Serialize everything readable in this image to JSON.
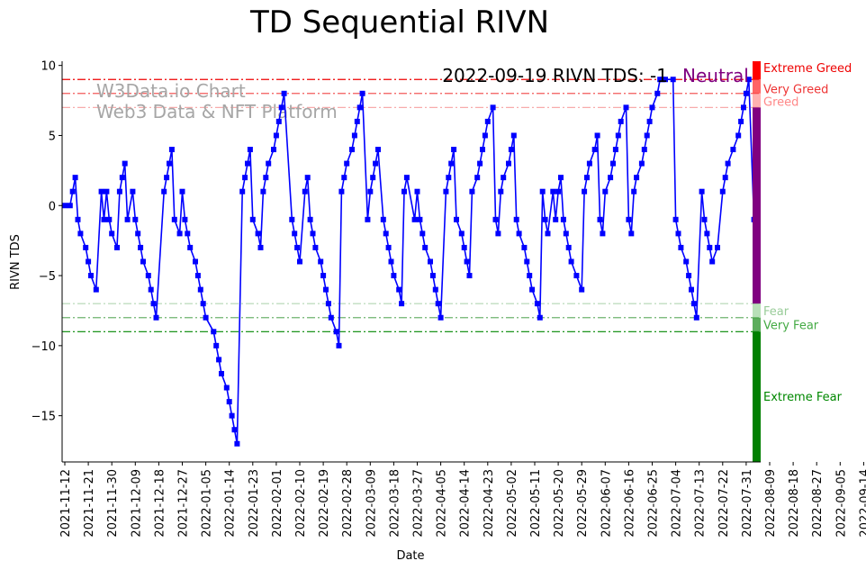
{
  "chart_data": {
    "type": "line",
    "title": "TD Sequential RIVN",
    "xlabel": "Date",
    "ylabel": "RIVN TDS",
    "ylim": [
      -18.3,
      10.3
    ],
    "yticks": [
      10,
      5,
      0,
      -5,
      -10,
      -15
    ],
    "x_tick_labels": [
      "2021-11-12",
      "2021-11-21",
      "2021-11-30",
      "2021-12-09",
      "2021-12-18",
      "2021-12-27",
      "2022-01-05",
      "2022-01-14",
      "2022-01-23",
      "2022-02-01",
      "2022-02-10",
      "2022-02-19",
      "2022-02-28",
      "2022-03-09",
      "2022-03-18",
      "2022-03-27",
      "2022-04-05",
      "2022-04-14",
      "2022-04-23",
      "2022-05-02",
      "2022-05-11",
      "2022-05-20",
      "2022-05-29",
      "2022-06-07",
      "2022-06-16",
      "2022-06-25",
      "2022-07-04",
      "2022-07-13",
      "2022-07-22",
      "2022-07-31",
      "2022-08-09",
      "2022-08-18",
      "2022-08-27",
      "2022-09-05",
      "2022-09-14"
    ],
    "annotation": "2022-09-19 RIVN TDS: -1",
    "annotation_status": "Neutral",
    "watermark_line1": "W3Data.io Chart",
    "watermark_line2": "Web3 Data & NFT Platform",
    "series": [
      {
        "name": "RIVN TDS",
        "color": "#0000ff",
        "points": [
          [
            0,
            0
          ],
          [
            2,
            0
          ],
          [
            3,
            1
          ],
          [
            4,
            2
          ],
          [
            5,
            -1
          ],
          [
            6,
            -2
          ],
          [
            8,
            -3
          ],
          [
            9,
            -4
          ],
          [
            10,
            -5
          ],
          [
            12,
            -6
          ],
          [
            14,
            1
          ],
          [
            15,
            -1
          ],
          [
            16,
            1
          ],
          [
            17,
            -1
          ],
          [
            18,
            -2
          ],
          [
            20,
            -3
          ],
          [
            21,
            1
          ],
          [
            22,
            2
          ],
          [
            23,
            3
          ],
          [
            24,
            -1
          ],
          [
            26,
            1
          ],
          [
            27,
            -1
          ],
          [
            28,
            -2
          ],
          [
            29,
            -3
          ],
          [
            30,
            -4
          ],
          [
            32,
            -5
          ],
          [
            33,
            -6
          ],
          [
            34,
            -7
          ],
          [
            35,
            -8
          ],
          [
            38,
            1
          ],
          [
            39,
            2
          ],
          [
            40,
            3
          ],
          [
            41,
            4
          ],
          [
            42,
            -1
          ],
          [
            44,
            -2
          ],
          [
            45,
            1
          ],
          [
            46,
            -1
          ],
          [
            47,
            -2
          ],
          [
            48,
            -3
          ],
          [
            50,
            -4
          ],
          [
            51,
            -5
          ],
          [
            52,
            -6
          ],
          [
            53,
            -7
          ],
          [
            54,
            -8
          ],
          [
            57,
            -9
          ],
          [
            58,
            -10
          ],
          [
            59,
            -11
          ],
          [
            60,
            -12
          ],
          [
            62,
            -13
          ],
          [
            63,
            -14
          ],
          [
            64,
            -15
          ],
          [
            65,
            -16
          ],
          [
            66,
            -17
          ],
          [
            68,
            1
          ],
          [
            69,
            2
          ],
          [
            70,
            3
          ],
          [
            71,
            4
          ],
          [
            72,
            -1
          ],
          [
            74,
            -2
          ],
          [
            75,
            -3
          ],
          [
            76,
            1
          ],
          [
            77,
            2
          ],
          [
            78,
            3
          ],
          [
            80,
            4
          ],
          [
            81,
            5
          ],
          [
            82,
            6
          ],
          [
            83,
            7
          ],
          [
            84,
            8
          ],
          [
            87,
            -1
          ],
          [
            88,
            -2
          ],
          [
            89,
            -3
          ],
          [
            90,
            -4
          ],
          [
            92,
            1
          ],
          [
            93,
            2
          ],
          [
            94,
            -1
          ],
          [
            95,
            -2
          ],
          [
            96,
            -3
          ],
          [
            98,
            -4
          ],
          [
            99,
            -5
          ],
          [
            100,
            -6
          ],
          [
            101,
            -7
          ],
          [
            102,
            -8
          ],
          [
            104,
            -9
          ],
          [
            105,
            -10
          ],
          [
            106,
            1
          ],
          [
            107,
            2
          ],
          [
            108,
            3
          ],
          [
            110,
            4
          ],
          [
            111,
            5
          ],
          [
            112,
            6
          ],
          [
            113,
            7
          ],
          [
            114,
            8
          ],
          [
            116,
            -1
          ],
          [
            117,
            1
          ],
          [
            118,
            2
          ],
          [
            119,
            3
          ],
          [
            120,
            4
          ],
          [
            122,
            -1
          ],
          [
            123,
            -2
          ],
          [
            124,
            -3
          ],
          [
            125,
            -4
          ],
          [
            126,
            -5
          ],
          [
            128,
            -6
          ],
          [
            129,
            -7
          ],
          [
            130,
            1
          ],
          [
            131,
            2
          ],
          [
            134,
            -1
          ],
          [
            135,
            1
          ],
          [
            136,
            -1
          ],
          [
            137,
            -2
          ],
          [
            138,
            -3
          ],
          [
            140,
            -4
          ],
          [
            141,
            -5
          ],
          [
            142,
            -6
          ],
          [
            143,
            -7
          ],
          [
            144,
            -8
          ],
          [
            146,
            1
          ],
          [
            147,
            2
          ],
          [
            148,
            3
          ],
          [
            149,
            4
          ],
          [
            150,
            -1
          ],
          [
            152,
            -2
          ],
          [
            153,
            -3
          ],
          [
            154,
            -4
          ],
          [
            155,
            -5
          ],
          [
            156,
            1
          ],
          [
            158,
            2
          ],
          [
            159,
            3
          ],
          [
            160,
            4
          ],
          [
            161,
            5
          ],
          [
            162,
            6
          ],
          [
            164,
            7
          ],
          [
            165,
            -1
          ],
          [
            166,
            -2
          ],
          [
            167,
            1
          ],
          [
            168,
            2
          ],
          [
            170,
            3
          ],
          [
            171,
            4
          ],
          [
            172,
            5
          ],
          [
            173,
            -1
          ],
          [
            174,
            -2
          ],
          [
            176,
            -3
          ],
          [
            177,
            -4
          ],
          [
            178,
            -5
          ],
          [
            179,
            -6
          ],
          [
            181,
            -7
          ],
          [
            182,
            -8
          ],
          [
            183,
            1
          ],
          [
            184,
            -1
          ],
          [
            185,
            -2
          ],
          [
            187,
            1
          ],
          [
            188,
            -1
          ],
          [
            189,
            1
          ],
          [
            190,
            2
          ],
          [
            191,
            -1
          ],
          [
            192,
            -2
          ],
          [
            193,
            -3
          ],
          [
            194,
            -4
          ],
          [
            196,
            -5
          ],
          [
            198,
            -6
          ],
          [
            199,
            1
          ],
          [
            200,
            2
          ],
          [
            201,
            3
          ],
          [
            203,
            4
          ],
          [
            204,
            5
          ],
          [
            205,
            -1
          ],
          [
            206,
            -2
          ],
          [
            207,
            1
          ],
          [
            209,
            2
          ],
          [
            210,
            3
          ],
          [
            211,
            4
          ],
          [
            212,
            5
          ],
          [
            213,
            6
          ],
          [
            215,
            7
          ],
          [
            216,
            -1
          ],
          [
            217,
            -2
          ],
          [
            218,
            1
          ],
          [
            219,
            2
          ],
          [
            221,
            3
          ],
          [
            222,
            4
          ],
          [
            223,
            5
          ],
          [
            224,
            6
          ],
          [
            225,
            7
          ],
          [
            227,
            8
          ],
          [
            228,
            9
          ],
          [
            229,
            9
          ],
          [
            230,
            9
          ],
          [
            233,
            9
          ],
          [
            234,
            -1
          ],
          [
            235,
            -2
          ],
          [
            236,
            -3
          ],
          [
            238,
            -4
          ],
          [
            239,
            -5
          ],
          [
            240,
            -6
          ],
          [
            241,
            -7
          ],
          [
            242,
            -8
          ],
          [
            244,
            1
          ],
          [
            245,
            -1
          ],
          [
            246,
            -2
          ],
          [
            247,
            -3
          ],
          [
            248,
            -4
          ],
          [
            250,
            -3
          ],
          [
            252,
            1
          ],
          [
            253,
            2
          ],
          [
            254,
            3
          ],
          [
            256,
            4
          ],
          [
            258,
            5
          ],
          [
            259,
            6
          ],
          [
            260,
            7
          ],
          [
            261,
            8
          ],
          [
            262,
            9
          ],
          [
            264,
            -1
          ]
        ]
      }
    ],
    "threshold_lines": [
      {
        "value": 9,
        "color": "#ee0000",
        "opacity": 1.0
      },
      {
        "value": 8,
        "color": "#ee2222",
        "opacity": 0.75
      },
      {
        "value": 7,
        "color": "#ee4444",
        "opacity": 0.45
      },
      {
        "value": -7,
        "color": "#228822",
        "opacity": 0.35
      },
      {
        "value": -8,
        "color": "#228822",
        "opacity": 0.65
      },
      {
        "value": -9,
        "color": "#008800",
        "opacity": 1.0
      }
    ],
    "zones": [
      {
        "label": "Extreme Greed",
        "from": 9,
        "to": 10.3,
        "bar_color": "#ff0000",
        "bar_opacity": 1.0,
        "label_color": "#ee0000",
        "label_at": 9.85
      },
      {
        "label": "Very Greed",
        "from": 8,
        "to": 9,
        "bar_color": "#ff3030",
        "bar_opacity": 0.75,
        "label_color": "#ee3333",
        "label_at": 8.35
      },
      {
        "label": "Greed",
        "from": 7,
        "to": 8,
        "bar_color": "#ff7070",
        "bar_opacity": 0.55,
        "label_color": "#ff8888",
        "label_at": 7.45
      },
      {
        "label": "Neutral",
        "from": -7,
        "to": 7,
        "bar_color": "#800080",
        "bar_opacity": 1.0,
        "label_color": "#800080",
        "label_at": null
      },
      {
        "label": "Fear",
        "from": -8,
        "to": -7,
        "bar_color": "#88cc88",
        "bar_opacity": 0.6,
        "label_color": "#99cc99",
        "label_at": -7.5
      },
      {
        "label": "Very Fear",
        "from": -9,
        "to": -8,
        "bar_color": "#339933",
        "bar_opacity": 0.8,
        "label_color": "#44aa44",
        "label_at": -8.5
      },
      {
        "label": "Extreme Fear",
        "from": -18.3,
        "to": -9,
        "bar_color": "#008000",
        "bar_opacity": 1.0,
        "label_color": "#008800",
        "label_at": -13.6
      }
    ]
  }
}
